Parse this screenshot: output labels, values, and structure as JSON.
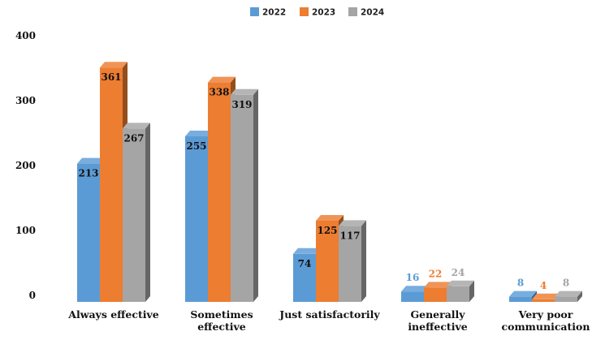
{
  "chart_data": {
    "type": "bar",
    "style": "3d-clustered-column",
    "categories": [
      [
        "Always effective"
      ],
      [
        "Sometimes",
        "effective"
      ],
      [
        "Just satisfactorily"
      ],
      [
        "Generally",
        "ineffective"
      ],
      [
        "Very poor",
        "communication"
      ]
    ],
    "series": [
      {
        "name": "2022",
        "color": "#5b9bd5",
        "values": [
          213,
          255,
          74,
          16,
          8
        ]
      },
      {
        "name": "2023",
        "color": "#ed7d31",
        "values": [
          361,
          338,
          125,
          22,
          4
        ]
      },
      {
        "name": "2024",
        "color": "#a5a5a5",
        "values": [
          267,
          319,
          117,
          24,
          8
        ]
      }
    ],
    "yticks": [
      0,
      100,
      200,
      300,
      400
    ],
    "ylim": [
      0,
      400
    ],
    "legend": "top-center",
    "grid": false,
    "title": "",
    "xlabel": "",
    "ylabel": ""
  }
}
